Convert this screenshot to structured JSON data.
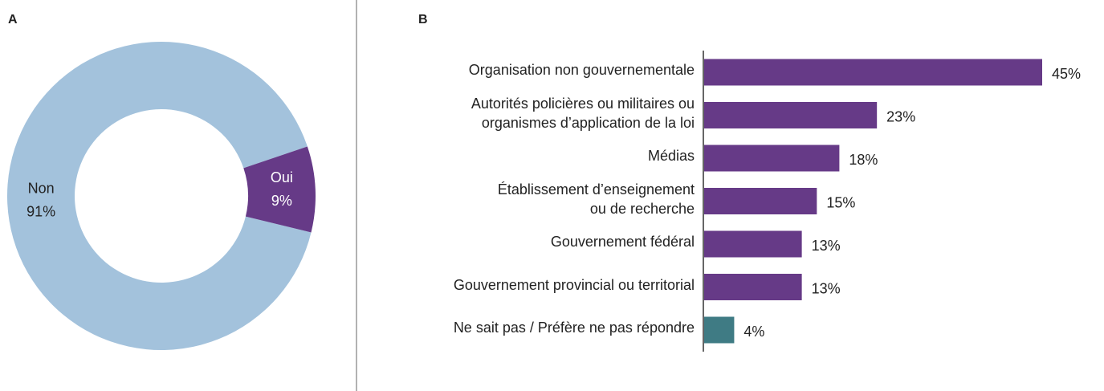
{
  "chart_data": [
    {
      "type": "pie",
      "panel": "A",
      "donut": true,
      "categories": [
        "Non",
        "Oui"
      ],
      "values": [
        91,
        9
      ],
      "value_labels": [
        "91%",
        "9%"
      ],
      "colors": [
        "#a3c2dc",
        "#663a87"
      ],
      "label_colors": [
        "#222222",
        "#ffffff"
      ]
    },
    {
      "type": "bar",
      "orientation": "horizontal",
      "panel": "B",
      "categories": [
        "Organisation non gouvernementale",
        "Autorités policières ou militaires ou\norganismes d’application de la loi",
        "Médias",
        "Établissement d’enseignement\nou de recherche",
        "Gouvernement fédéral",
        "Gouvernement provincial ou territorial",
        "Ne sait pas / Préfère ne pas répondre"
      ],
      "values": [
        45,
        23,
        18,
        15,
        13,
        13,
        4
      ],
      "value_labels": [
        "45%",
        "23%",
        "18%",
        "15%",
        "13%",
        "13%",
        "4%"
      ],
      "colors": [
        "#663a87",
        "#663a87",
        "#663a87",
        "#663a87",
        "#663a87",
        "#663a87",
        "#3f7b84"
      ]
    }
  ]
}
